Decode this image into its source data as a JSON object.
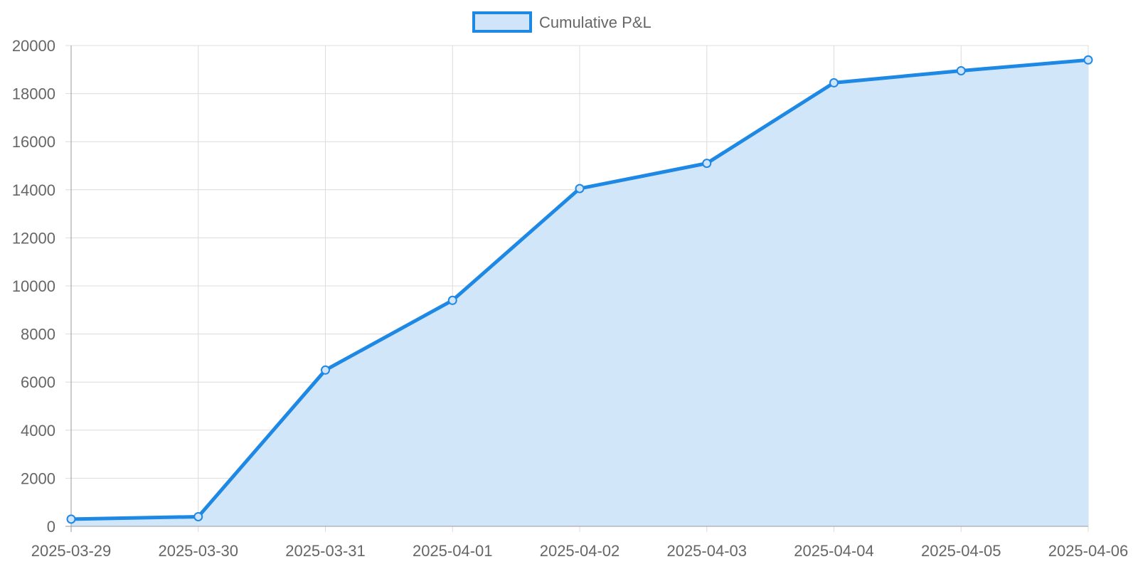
{
  "chart_data": {
    "type": "area",
    "title": "",
    "xlabel": "",
    "ylabel": "",
    "categories": [
      "2025-03-29",
      "2025-03-30",
      "2025-03-31",
      "2025-04-01",
      "2025-04-02",
      "2025-04-03",
      "2025-04-04",
      "2025-04-05",
      "2025-04-06"
    ],
    "series": [
      {
        "name": "Cumulative P&L",
        "values": [
          300,
          400,
          6500,
          9400,
          14050,
          15100,
          18450,
          18950,
          19400
        ],
        "color": "#1e88e5",
        "fill": "#d0e5f9"
      }
    ],
    "ylim": [
      0,
      20000
    ],
    "yticks": [
      0,
      2000,
      4000,
      6000,
      8000,
      10000,
      12000,
      14000,
      16000,
      18000,
      20000
    ],
    "grid": true,
    "legend": "top-center",
    "markers": true
  }
}
